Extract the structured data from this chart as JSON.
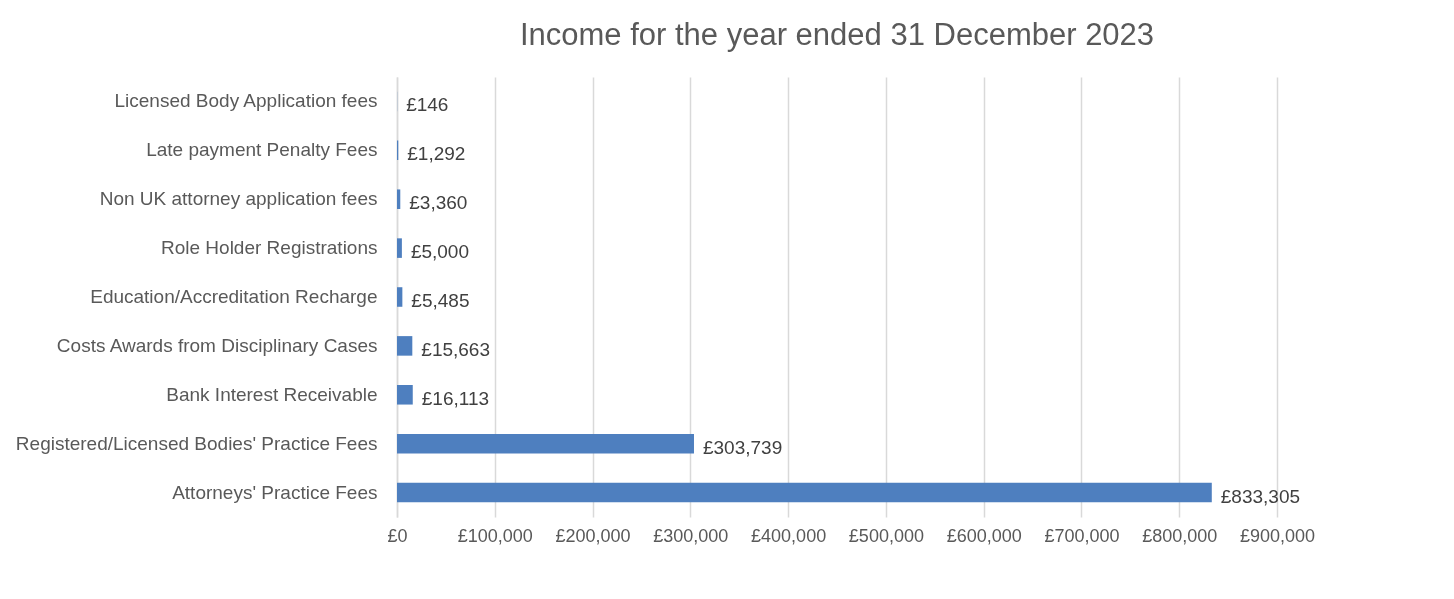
{
  "chart_data": {
    "type": "bar",
    "orientation": "horizontal",
    "title": "Income for the year ended 31 December 2023",
    "categories": [
      "Licensed Body Application fees",
      "Late payment Penalty Fees",
      "Non UK attorney application fees",
      "Role Holder Registrations",
      "Education/Accreditation Recharge",
      "Costs Awards from Disciplinary Cases",
      "Bank Interest Receivable",
      "Registered/Licensed Bodies' Practice Fees",
      "Attorneys' Practice Fees"
    ],
    "values": [
      146,
      1292,
      3360,
      5000,
      5485,
      15663,
      16113,
      303739,
      833305
    ],
    "value_labels": [
      "£146",
      "£1,292",
      "£3,360",
      "£5,000",
      "£5,485",
      "£15,663",
      "£16,113",
      "£303,739",
      "£833,305"
    ],
    "color": "#4e7fbf",
    "xlim": [
      0,
      900000
    ],
    "xticks": [
      {
        "value": 0,
        "label": "£0"
      },
      {
        "value": 100000,
        "label": "£100,000"
      },
      {
        "value": 200000,
        "label": "£200,000"
      },
      {
        "value": 300000,
        "label": "£300,000"
      },
      {
        "value": 400000,
        "label": "£400,000"
      },
      {
        "value": 500000,
        "label": "£500,000"
      },
      {
        "value": 600000,
        "label": "£600,000"
      },
      {
        "value": 700000,
        "label": "£700,000"
      },
      {
        "value": 800000,
        "label": "£800,000"
      },
      {
        "value": 900000,
        "label": "£900,000"
      }
    ],
    "grid": "x"
  }
}
